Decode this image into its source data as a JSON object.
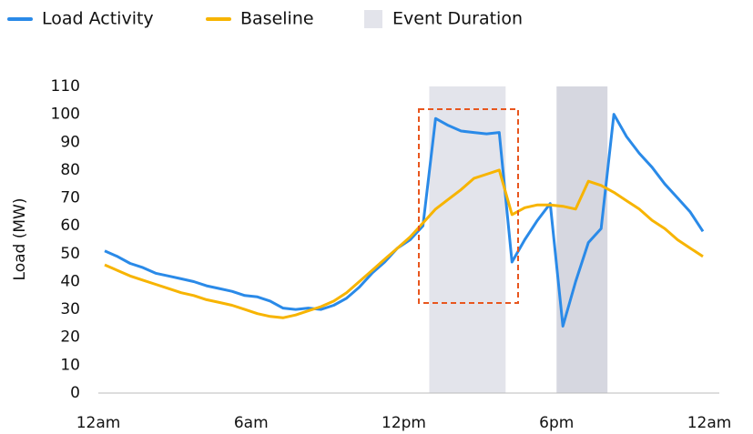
{
  "chart_data": {
    "type": "line",
    "y_label": "Load (MW)",
    "x": [
      0.25,
      0.75,
      1.25,
      1.75,
      2.25,
      2.75,
      3.25,
      3.75,
      4.25,
      4.75,
      5.25,
      5.75,
      6.25,
      6.75,
      7.25,
      7.75,
      8.25,
      8.75,
      9.25,
      9.75,
      10.25,
      10.75,
      11.25,
      11.75,
      12.25,
      12.75,
      13.25,
      13.75,
      14.25,
      14.75,
      15.25,
      15.75,
      16.25,
      16.75,
      17.25,
      17.75,
      18.25,
      18.75,
      19.25,
      19.75,
      20.25,
      20.75,
      21.25,
      21.75,
      22.25,
      22.75,
      23.25,
      23.75
    ],
    "series": [
      {
        "name": "Load Activity",
        "color": "#2a8ae8",
        "values": [
          51,
          49,
          46.5,
          45,
          43,
          42,
          41,
          40,
          38.5,
          37.5,
          36.5,
          35,
          34.5,
          33,
          30.5,
          30,
          30.5,
          30,
          31.5,
          34,
          38,
          43,
          47,
          52,
          55,
          60,
          98.5,
          96,
          94,
          93.5,
          93,
          93.5,
          47,
          55,
          62,
          68,
          24,
          40,
          54,
          59,
          100,
          92,
          86,
          81,
          75,
          70,
          65,
          58
        ]
      },
      {
        "name": "Baseline",
        "color": "#f7b400",
        "values": [
          46,
          44,
          42,
          40.5,
          39,
          37.5,
          36,
          35,
          33.5,
          32.5,
          31.5,
          30,
          28.5,
          27.5,
          27,
          28,
          29.5,
          31,
          33,
          36,
          40,
          44,
          48,
          52,
          56,
          61,
          66,
          69.5,
          73,
          77,
          78.5,
          80,
          64,
          66.5,
          67.5,
          67.5,
          67,
          66,
          76,
          74.5,
          72,
          69,
          66,
          62,
          59,
          55,
          52,
          49
        ]
      }
    ],
    "events_name": "Event Duration",
    "events": [
      {
        "start": 13,
        "end": 16,
        "color": "#e3e4eb"
      },
      {
        "start": 18,
        "end": 20,
        "color": "#d6d7e0"
      }
    ],
    "xlim": [
      0,
      24
    ],
    "xticks": [
      {
        "value": 0,
        "label": "12am"
      },
      {
        "value": 6,
        "label": "6am"
      },
      {
        "value": 12,
        "label": "12pm"
      },
      {
        "value": 18,
        "label": "6pm"
      },
      {
        "value": 24,
        "label": "12am"
      }
    ],
    "ylim": [
      0,
      110
    ],
    "yticks": [
      0,
      10,
      20,
      30,
      40,
      50,
      60,
      70,
      80,
      90,
      100,
      110
    ]
  }
}
